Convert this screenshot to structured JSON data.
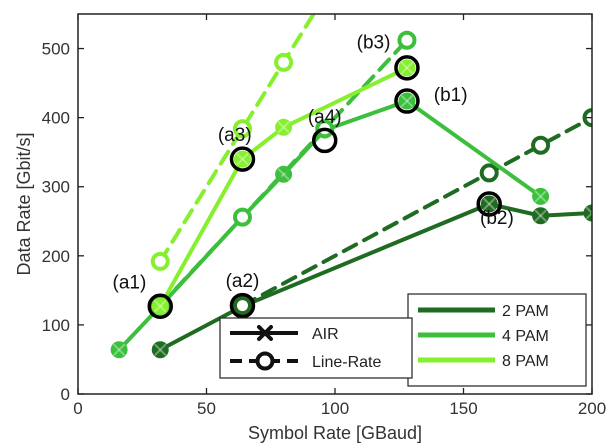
{
  "chart_data": {
    "type": "line",
    "xlabel": "Symbol Rate [GBaud]",
    "ylabel": "Data Rate [Gbit/s]",
    "xlim": [
      0,
      200
    ],
    "ylim": [
      0,
      550
    ],
    "xticks": [
      0,
      50,
      100,
      150,
      200
    ],
    "yticks": [
      0,
      100,
      200,
      300,
      400,
      500
    ],
    "grid": false,
    "colors": {
      "2 PAM": "#1f6b21",
      "4 PAM": "#3cbf3c",
      "8 PAM": "#86ef2e"
    },
    "series": [
      {
        "name": "2 PAM",
        "kind": "AIR",
        "x": [
          32,
          64,
          160,
          180,
          200
        ],
        "y": [
          64,
          127,
          275,
          258,
          262
        ]
      },
      {
        "name": "2 PAM",
        "kind": "Line-Rate",
        "x": [
          64,
          160,
          180,
          200
        ],
        "y": [
          128,
          320,
          360,
          400
        ]
      },
      {
        "name": "4 PAM",
        "kind": "AIR",
        "x": [
          16,
          32,
          64,
          80,
          96,
          128,
          180
        ],
        "y": [
          64,
          127,
          256,
          318,
          382,
          424,
          286
        ]
      },
      {
        "name": "4 PAM",
        "kind": "Line-Rate",
        "x": [
          32,
          64,
          96,
          128
        ],
        "y": [
          128,
          256,
          384,
          512
        ]
      },
      {
        "name": "8 PAM",
        "kind": "AIR",
        "x": [
          32,
          64,
          80,
          128
        ],
        "y": [
          127,
          340,
          386,
          472
        ]
      },
      {
        "name": "8 PAM",
        "kind": "Line-Rate",
        "x": [
          32,
          64,
          80,
          96
        ],
        "y": [
          192,
          384,
          480,
          576
        ]
      }
    ],
    "highlights": [
      {
        "label": "(a1)",
        "x": 32,
        "y": 127,
        "lx": 20,
        "ly": 153
      },
      {
        "label": "(a2)",
        "x": 64,
        "y": 128,
        "lx": 64,
        "ly": 155
      },
      {
        "label": "(a3)",
        "x": 64,
        "y": 340,
        "lx": 61,
        "ly": 366
      },
      {
        "label": "(a4)",
        "x": 96,
        "y": 367,
        "lx": 96,
        "ly": 392
      },
      {
        "label": "(b1)",
        "x": 128,
        "y": 424,
        "lx": 145,
        "ly": 424
      },
      {
        "label": "(b2)",
        "x": 160,
        "y": 275,
        "lx": 163,
        "ly": 246
      },
      {
        "label": "(b3)",
        "x": 128,
        "y": 472,
        "lx": 115,
        "ly": 500
      }
    ],
    "legend_rate": {
      "entries": [
        {
          "label": "2 PAM"
        },
        {
          "label": "4 PAM"
        },
        {
          "label": "8 PAM"
        }
      ],
      "placement": "bottom-right"
    },
    "legend_style": {
      "entries": [
        {
          "label": "AIR",
          "marker": "x",
          "dash": "solid"
        },
        {
          "label": "Line-Rate",
          "marker": "o",
          "dash": "dashed"
        }
      ],
      "placement": "bottom-center"
    }
  }
}
